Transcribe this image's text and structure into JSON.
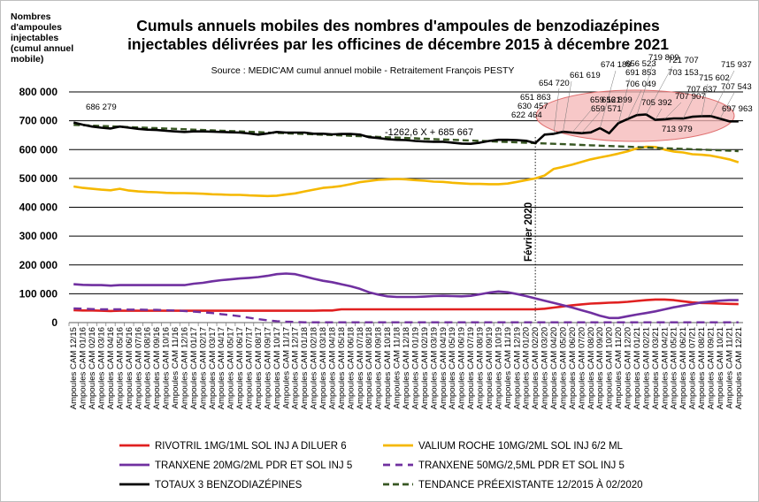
{
  "chart_data": {
    "type": "line",
    "title": "Cumuls annuels mobiles des nombres d'ampoules de benzodiazépines injectables délivrées par les officines de décembre 2015 à décembre 2021",
    "subtitle": "Source : MEDIC'AM cumul annuel mobile - Retraitement François PESTY",
    "ylabel": "Nombres d'ampoules injectables (cumul annuel mobile)",
    "ylim": [
      0,
      800000
    ],
    "yticks": [
      "0",
      "100 000",
      "200 000",
      "300 000",
      "400 000",
      "500 000",
      "600 000",
      "700 000",
      "800 000"
    ],
    "categories": [
      "Ampoules CAM 12/15",
      "Ampoules CAM 01/16",
      "Ampoules CAM 02/16",
      "Ampoules CAM 03/16",
      "Ampoules CAM 04/16",
      "Ampoules CAM 05/16",
      "Ampoules CAM 06/16",
      "Ampoules CAM 07/16",
      "Ampoules CAM 08/16",
      "Ampoules CAM 09/16",
      "Ampoules CAM 10/16",
      "Ampoules CAM 11/16",
      "Ampoules CAM 12/16",
      "Ampoules CAM 01/17",
      "Ampoules CAM 02/17",
      "Ampoules CAM 03/17",
      "Ampoules CAM 04/17",
      "Ampoules CAM 05/17",
      "Ampoules CAM 06/17",
      "Ampoules CAM 07/17",
      "Ampoules CAM 08/17",
      "Ampoules CAM 09/17",
      "Ampoules CAM 10/17",
      "Ampoules CAM 11/17",
      "Ampoules CAM 12/17",
      "Ampoules CAM 01/18",
      "Ampoules CAM 02/18",
      "Ampoules CAM 03/18",
      "Ampoules CAM 04/18",
      "Ampoules CAM 05/18",
      "Ampoules CAM 06/18",
      "Ampoules CAM 07/18",
      "Ampoules CAM 08/18",
      "Ampoules CAM 09/18",
      "Ampoules CAM 10/18",
      "Ampoules CAM 11/18",
      "Ampoules CAM 12/18",
      "Ampoules CAM 01/19",
      "Ampoules CAM 02/19",
      "Ampoules CAM 03/19",
      "Ampoules CAM 04/19",
      "Ampoules CAM 05/19",
      "Ampoules CAM 06/19",
      "Ampoules CAM 07/19",
      "Ampoules CAM 08/19",
      "Ampoules CAM 09/19",
      "Ampoules CAM 10/19",
      "Ampoules CAM 11/19",
      "Ampoules CAM 12/19",
      "Ampoules CAM 01/20",
      "Ampoules CAM 02/20",
      "Ampoules CAM 03/20",
      "Ampoules CAM 04/20",
      "Ampoules CAM 05/20",
      "Ampoules CAM 06/20",
      "Ampoules CAM 07/20",
      "Ampoules CAM 08/20",
      "Ampoules CAM 09/20",
      "Ampoules CAM 10/20",
      "Ampoules CAM 11/20",
      "Ampoules CAM 12/20",
      "Ampoules CAM 01/21",
      "Ampoules CAM 02/21",
      "Ampoules CAM 03/21",
      "Ampoules CAM 04/21",
      "Ampoules CAM 05/21",
      "Ampoules CAM 06/21",
      "Ampoules CAM 07/21",
      "Ampoules CAM 08/21",
      "Ampoules CAM 09/21",
      "Ampoules CAM 10/21",
      "Ampoules CAM 11/21",
      "Ampoules CAM 12/21"
    ],
    "series": [
      {
        "name": "RIVOTRIL 1MG/1ML SOL INJ A DILUER 6",
        "color": "#e02020",
        "style": "solid",
        "values": [
          43000,
          42000,
          42000,
          41000,
          40000,
          41000,
          41000,
          41000,
          41000,
          41000,
          41000,
          41000,
          41000,
          41000,
          41000,
          41000,
          41000,
          41000,
          41000,
          41000,
          41000,
          41000,
          41000,
          41000,
          41000,
          41000,
          41000,
          42000,
          42000,
          46000,
          46000,
          46000,
          46000,
          46000,
          46000,
          46000,
          46000,
          46000,
          46000,
          46000,
          46000,
          46000,
          46000,
          46000,
          46000,
          46000,
          46000,
          46000,
          46000,
          46000,
          46000,
          48000,
          52000,
          56000,
          60000,
          63000,
          66000,
          67000,
          69000,
          70000,
          72000,
          75000,
          78000,
          80000,
          80000,
          78000,
          74000,
          70000,
          68000,
          67000,
          66000,
          65000,
          64000
        ]
      },
      {
        "name": "VALIUM ROCHE 10MG/2ML SOL INJ 6/2 ML",
        "color": "#f5b800",
        "style": "solid",
        "values": [
          472000,
          467000,
          464000,
          461000,
          459000,
          464000,
          458000,
          455000,
          453000,
          452000,
          450000,
          449000,
          449000,
          448000,
          447000,
          445000,
          444000,
          443000,
          443000,
          441000,
          440000,
          439000,
          440000,
          444000,
          448000,
          455000,
          461000,
          467000,
          470000,
          474000,
          480000,
          487000,
          491000,
          495000,
          497000,
          498000,
          497000,
          494000,
          492000,
          489000,
          488000,
          485000,
          483000,
          481000,
          481000,
          480000,
          480000,
          482000,
          488000,
          494000,
          500000,
          510000,
          533000,
          540000,
          548000,
          557000,
          566000,
          573000,
          579000,
          586000,
          594000,
          604000,
          610000,
          609000,
          600000,
          593000,
          590000,
          584000,
          582000,
          579000,
          573000,
          566000,
          556000
        ]
      },
      {
        "name": "TRANXENE 20MG/2ML PDR ET SOL INJ 5",
        "color": "#7030a0",
        "style": "solid",
        "values": [
          133000,
          131000,
          130000,
          130000,
          128000,
          130000,
          130000,
          130000,
          130000,
          130000,
          130000,
          130000,
          130000,
          135000,
          138000,
          143000,
          147000,
          150000,
          153000,
          155000,
          158000,
          162000,
          168000,
          170000,
          168000,
          160000,
          152000,
          145000,
          140000,
          133000,
          126000,
          117000,
          105000,
          97000,
          91000,
          89000,
          89000,
          89000,
          90000,
          92000,
          93000,
          92000,
          91000,
          93000,
          98000,
          104000,
          108000,
          105000,
          99000,
          92000,
          84000,
          76000,
          68000,
          60000,
          52000,
          43000,
          34000,
          24000,
          16000,
          16000,
          22000,
          28000,
          33000,
          39000,
          46000,
          53000,
          59000,
          64000,
          70000,
          73000,
          76000,
          78000,
          78000
        ]
      },
      {
        "name": "TRANXENE 50MG/2,5ML PDR ET SOL INJ 5",
        "color": "#7030a0",
        "style": "dashed",
        "values": [
          49000,
          48000,
          47000,
          46000,
          46000,
          46000,
          45000,
          45000,
          44000,
          44000,
          43000,
          42000,
          40000,
          38000,
          36000,
          33000,
          29000,
          26000,
          22000,
          17000,
          12000,
          8000,
          5000,
          3000,
          2000,
          1000,
          1000,
          1000,
          1000,
          1000,
          1000,
          1000,
          1000,
          1000,
          1000,
          1000,
          1000,
          1000,
          1000,
          1000,
          1000,
          1000,
          1000,
          1000,
          1000,
          1000,
          1000,
          1000,
          1000,
          1000,
          1000,
          1000,
          1000,
          1000,
          1000,
          1000,
          1000,
          1000,
          1000,
          1000,
          1000,
          1000,
          1000,
          1000,
          1000,
          1000,
          1000,
          1000,
          1000,
          1000,
          1000,
          1000,
          1000
        ]
      },
      {
        "name": "TOTAUX 3 BENZODIAZÉPINES",
        "color": "#000000",
        "style": "solid",
        "values": [
          694000,
          686279,
          680000,
          676000,
          673000,
          680000,
          676000,
          672000,
          669000,
          668000,
          665000,
          663000,
          661000,
          663000,
          663000,
          662000,
          661000,
          660000,
          659000,
          656000,
          652000,
          656000,
          661000,
          659000,
          659000,
          659000,
          655000,
          655000,
          653000,
          654000,
          654000,
          652000,
          643000,
          640000,
          636000,
          634000,
          633000,
          630000,
          628000,
          627000,
          627000,
          624000,
          621000,
          620000,
          624000,
          630000,
          634000,
          634000,
          633000,
          630457,
          622464,
          651863,
          654720,
          661619,
          659121,
          656899,
          659571,
          674189,
          656523,
          691853,
          706049,
          719809,
          721707,
          703153,
          705392,
          707907,
          707637,
          713979,
          715602,
          715937,
          707543,
          697963,
          697963
        ]
      },
      {
        "name": "TENDANCE PRÉEXISTANTE 12/2015 À 02/2020",
        "color": "#385723",
        "style": "dashed",
        "values": [
          685667,
          684404,
          683142,
          681879,
          680616,
          679354,
          678091,
          676828,
          675566,
          674303,
          673041,
          671778,
          670515,
          669253,
          667990,
          666727,
          665465,
          664202,
          662939,
          661677,
          660414,
          659151,
          657889,
          656626,
          655363,
          654101,
          652838,
          651576,
          650313,
          649050,
          647788,
          646525,
          645262,
          644000,
          642737,
          641474,
          640212,
          638949,
          637686,
          636424,
          635161,
          633898,
          632636,
          631373,
          630111,
          628848,
          627585,
          626323,
          625060,
          623797,
          622535,
          621272,
          620009,
          618747,
          617484,
          616221,
          614959,
          613696,
          612433,
          611171,
          609908,
          608646,
          607383,
          606120,
          604858,
          603595,
          602332,
          601070,
          599807,
          598544,
          597282,
          596019,
          594756
        ]
      }
    ],
    "grid": true,
    "legend_position": "bottom",
    "annotations": {
      "equation": "-1262,6 X + 685 667",
      "vline_label": "Février 2020",
      "first_point_label": "686 279",
      "labels": [
        "622 464",
        "630 457",
        "651 863",
        "654 720",
        "661 619",
        "659 121",
        "656 899",
        "659 571",
        "674 189",
        "656 523",
        "691 853",
        "706 049",
        "719 809",
        "721 707",
        "703 153",
        "705 392",
        "707 907",
        "707 637",
        "713 979",
        "715 602",
        "715 937",
        "707 543",
        "697 963"
      ]
    }
  }
}
